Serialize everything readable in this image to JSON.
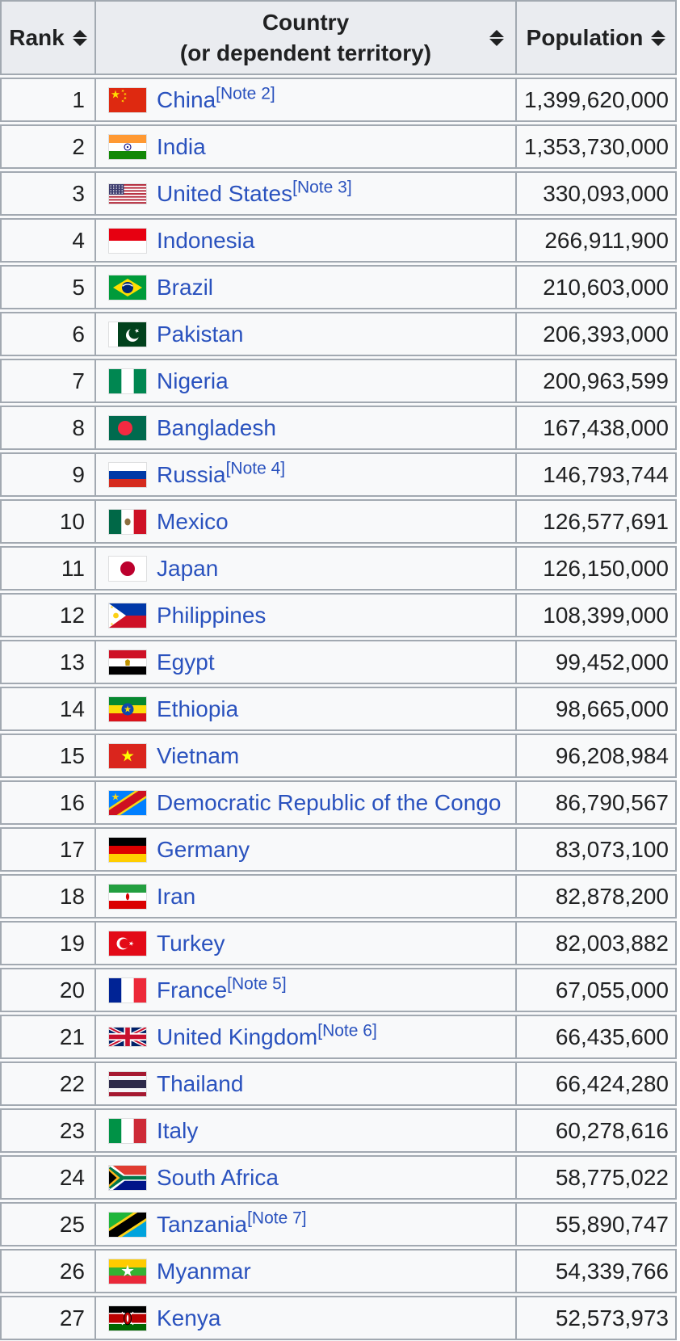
{
  "colors": {
    "header_bg": "#eaecf0",
    "row_bg": "#f8f9fa",
    "border": "#a2a9b1",
    "link": "#2a52be",
    "text": "#202122"
  },
  "icons": {
    "sort": "sort-arrows-icon"
  },
  "table": {
    "headers": {
      "rank": "Rank",
      "country": "Country",
      "country_sub": "(or dependent territory)",
      "population": "Population"
    },
    "rows": [
      {
        "rank": "1",
        "country": "China",
        "note": "[Note 2]",
        "flag": "china",
        "population": "1,399,620,000"
      },
      {
        "rank": "2",
        "country": "India",
        "note": "",
        "flag": "india",
        "population": "1,353,730,000"
      },
      {
        "rank": "3",
        "country": "United States",
        "note": "[Note 3]",
        "flag": "us",
        "population": "330,093,000"
      },
      {
        "rank": "4",
        "country": "Indonesia",
        "note": "",
        "flag": "indonesia",
        "population": "266,911,900"
      },
      {
        "rank": "5",
        "country": "Brazil",
        "note": "",
        "flag": "brazil",
        "population": "210,603,000"
      },
      {
        "rank": "6",
        "country": "Pakistan",
        "note": "",
        "flag": "pakistan",
        "population": "206,393,000"
      },
      {
        "rank": "7",
        "country": "Nigeria",
        "note": "",
        "flag": "nigeria",
        "population": "200,963,599"
      },
      {
        "rank": "8",
        "country": "Bangladesh",
        "note": "",
        "flag": "bangladesh",
        "population": "167,438,000"
      },
      {
        "rank": "9",
        "country": "Russia",
        "note": "[Note 4]",
        "flag": "russia",
        "population": "146,793,744"
      },
      {
        "rank": "10",
        "country": "Mexico",
        "note": "",
        "flag": "mexico",
        "population": "126,577,691"
      },
      {
        "rank": "11",
        "country": "Japan",
        "note": "",
        "flag": "japan",
        "population": "126,150,000"
      },
      {
        "rank": "12",
        "country": "Philippines",
        "note": "",
        "flag": "philippines",
        "population": "108,399,000"
      },
      {
        "rank": "13",
        "country": "Egypt",
        "note": "",
        "flag": "egypt",
        "population": "99,452,000"
      },
      {
        "rank": "14",
        "country": "Ethiopia",
        "note": "",
        "flag": "ethiopia",
        "population": "98,665,000"
      },
      {
        "rank": "15",
        "country": "Vietnam",
        "note": "",
        "flag": "vietnam",
        "population": "96,208,984"
      },
      {
        "rank": "16",
        "country": "Democratic Republic of the Congo",
        "note": "",
        "flag": "drc",
        "population": "86,790,567"
      },
      {
        "rank": "17",
        "country": "Germany",
        "note": "",
        "flag": "germany",
        "population": "83,073,100"
      },
      {
        "rank": "18",
        "country": "Iran",
        "note": "",
        "flag": "iran",
        "population": "82,878,200"
      },
      {
        "rank": "19",
        "country": "Turkey",
        "note": "",
        "flag": "turkey",
        "population": "82,003,882"
      },
      {
        "rank": "20",
        "country": "France",
        "note": "[Note 5]",
        "flag": "france",
        "population": "67,055,000"
      },
      {
        "rank": "21",
        "country": "United Kingdom",
        "note": "[Note 6]",
        "flag": "uk",
        "population": "66,435,600"
      },
      {
        "rank": "22",
        "country": "Thailand",
        "note": "",
        "flag": "thailand",
        "population": "66,424,280"
      },
      {
        "rank": "23",
        "country": "Italy",
        "note": "",
        "flag": "italy",
        "population": "60,278,616"
      },
      {
        "rank": "24",
        "country": "South Africa",
        "note": "",
        "flag": "southafrica",
        "population": "58,775,022"
      },
      {
        "rank": "25",
        "country": "Tanzania",
        "note": "[Note 7]",
        "flag": "tanzania",
        "population": "55,890,747"
      },
      {
        "rank": "26",
        "country": "Myanmar",
        "note": "",
        "flag": "myanmar",
        "population": "54,339,766"
      },
      {
        "rank": "27",
        "country": "Kenya",
        "note": "",
        "flag": "kenya",
        "population": "52,573,973"
      }
    ]
  }
}
